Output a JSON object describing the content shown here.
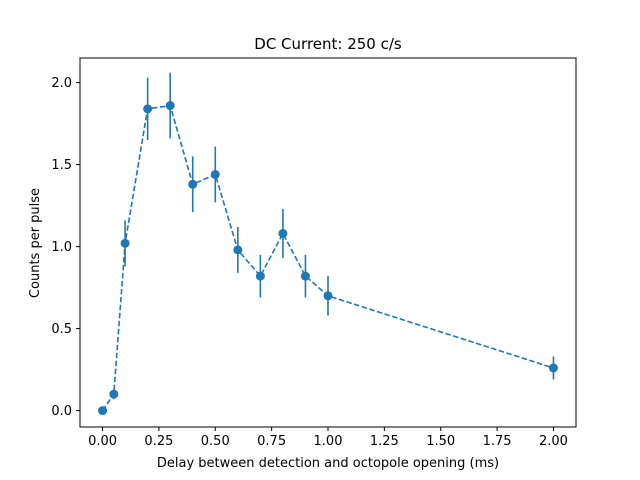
{
  "chart_data": {
    "type": "scatter",
    "title": "DC Current: 250 c/s",
    "xlabel": "Delay between detection and octopole opening (ms)",
    "ylabel": "Counts per pulse",
    "xlim": [
      -0.1,
      2.1
    ],
    "ylim": [
      -0.1,
      2.15
    ],
    "xticks": [
      "0.00",
      "0.25",
      "0.50",
      "0.75",
      "1.00",
      "1.25",
      "1.50",
      "1.75",
      "2.00"
    ],
    "yticks": [
      "0.0",
      "0.5",
      "1.0",
      "1.5",
      "2.0"
    ],
    "grid": false,
    "color": "#1f77b4",
    "line_style": "dashed",
    "marker": "circle",
    "points": [
      {
        "x": 0.0,
        "y": 0.0,
        "err": 0.0
      },
      {
        "x": 0.05,
        "y": 0.1,
        "err": 0.03
      },
      {
        "x": 0.1,
        "y": 1.02,
        "err": 0.14
      },
      {
        "x": 0.2,
        "y": 1.84,
        "err": 0.19
      },
      {
        "x": 0.3,
        "y": 1.86,
        "err": 0.2
      },
      {
        "x": 0.4,
        "y": 1.38,
        "err": 0.17
      },
      {
        "x": 0.5,
        "y": 1.44,
        "err": 0.17
      },
      {
        "x": 0.6,
        "y": 0.98,
        "err": 0.14
      },
      {
        "x": 0.7,
        "y": 0.82,
        "err": 0.13
      },
      {
        "x": 0.8,
        "y": 1.08,
        "err": 0.15
      },
      {
        "x": 0.9,
        "y": 0.82,
        "err": 0.13
      },
      {
        "x": 1.0,
        "y": 0.7,
        "err": 0.12
      },
      {
        "x": 2.0,
        "y": 0.26,
        "err": 0.07
      }
    ]
  }
}
